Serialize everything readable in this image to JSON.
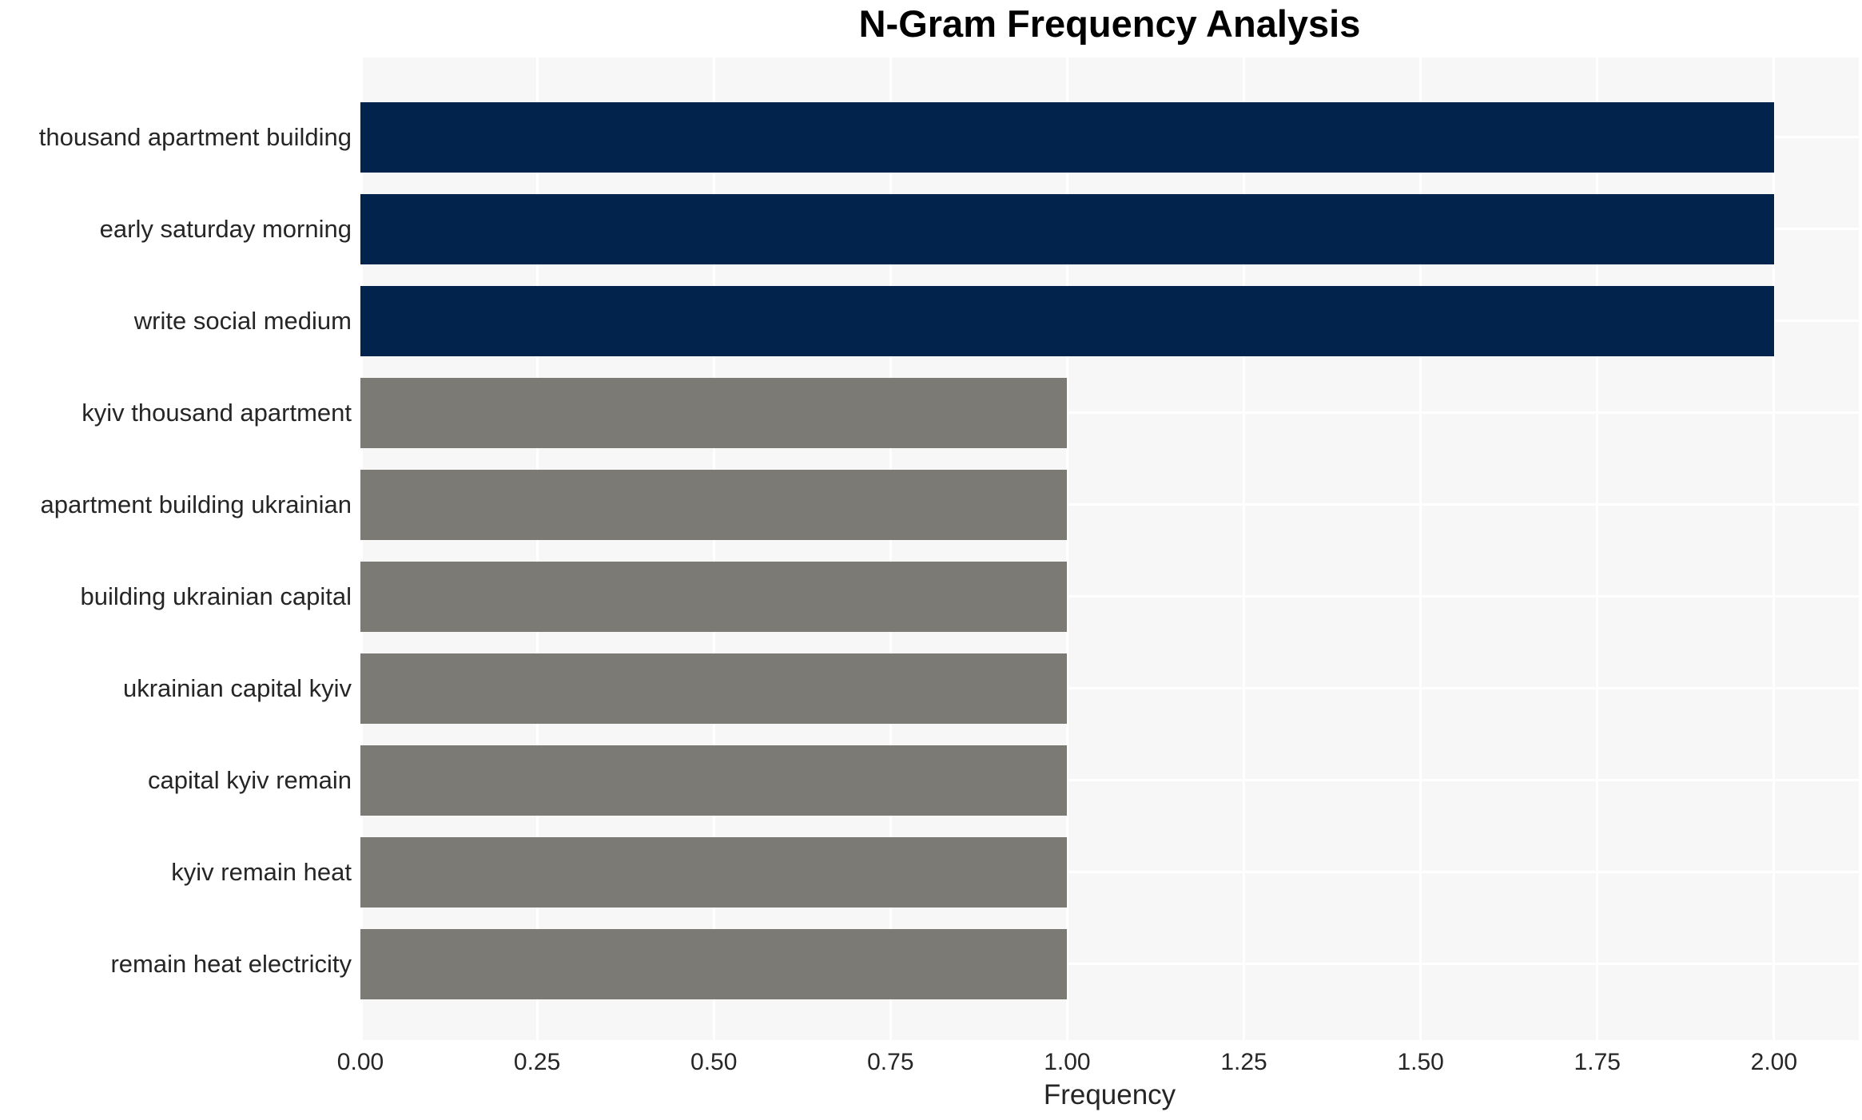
{
  "chart_data": {
    "type": "bar",
    "orientation": "horizontal",
    "title": "N-Gram Frequency Analysis",
    "xlabel": "Frequency",
    "ylabel": "",
    "categories": [
      "thousand apartment building",
      "early saturday morning",
      "write social medium",
      "kyiv thousand apartment",
      "apartment building ukrainian",
      "building ukrainian capital",
      "ukrainian capital kyiv",
      "capital kyiv remain",
      "kyiv remain heat",
      "remain heat electricity"
    ],
    "values": [
      2,
      2,
      2,
      1,
      1,
      1,
      1,
      1,
      1,
      1
    ],
    "bar_colors": [
      "#02234C",
      "#02234C",
      "#02234C",
      "#7B7A75",
      "#7B7A75",
      "#7B7A75",
      "#7B7A75",
      "#7B7A75",
      "#7B7A75",
      "#7B7A75"
    ],
    "xlim": [
      0,
      2.12
    ],
    "xticks": [
      "0.00",
      "0.25",
      "0.50",
      "0.75",
      "1.00",
      "1.25",
      "1.50",
      "1.75",
      "2.00"
    ],
    "xtick_values": [
      0.0,
      0.25,
      0.5,
      0.75,
      1.0,
      1.25,
      1.5,
      1.75,
      2.0
    ],
    "grid": true,
    "legend_position": "none",
    "colors": {
      "highlight": "#02234C",
      "default": "#7B7A75",
      "plot_background": "#F7F7F7",
      "gridline": "#FFFFFF",
      "tick_text": "#262626",
      "title_text": "#000000"
    }
  }
}
